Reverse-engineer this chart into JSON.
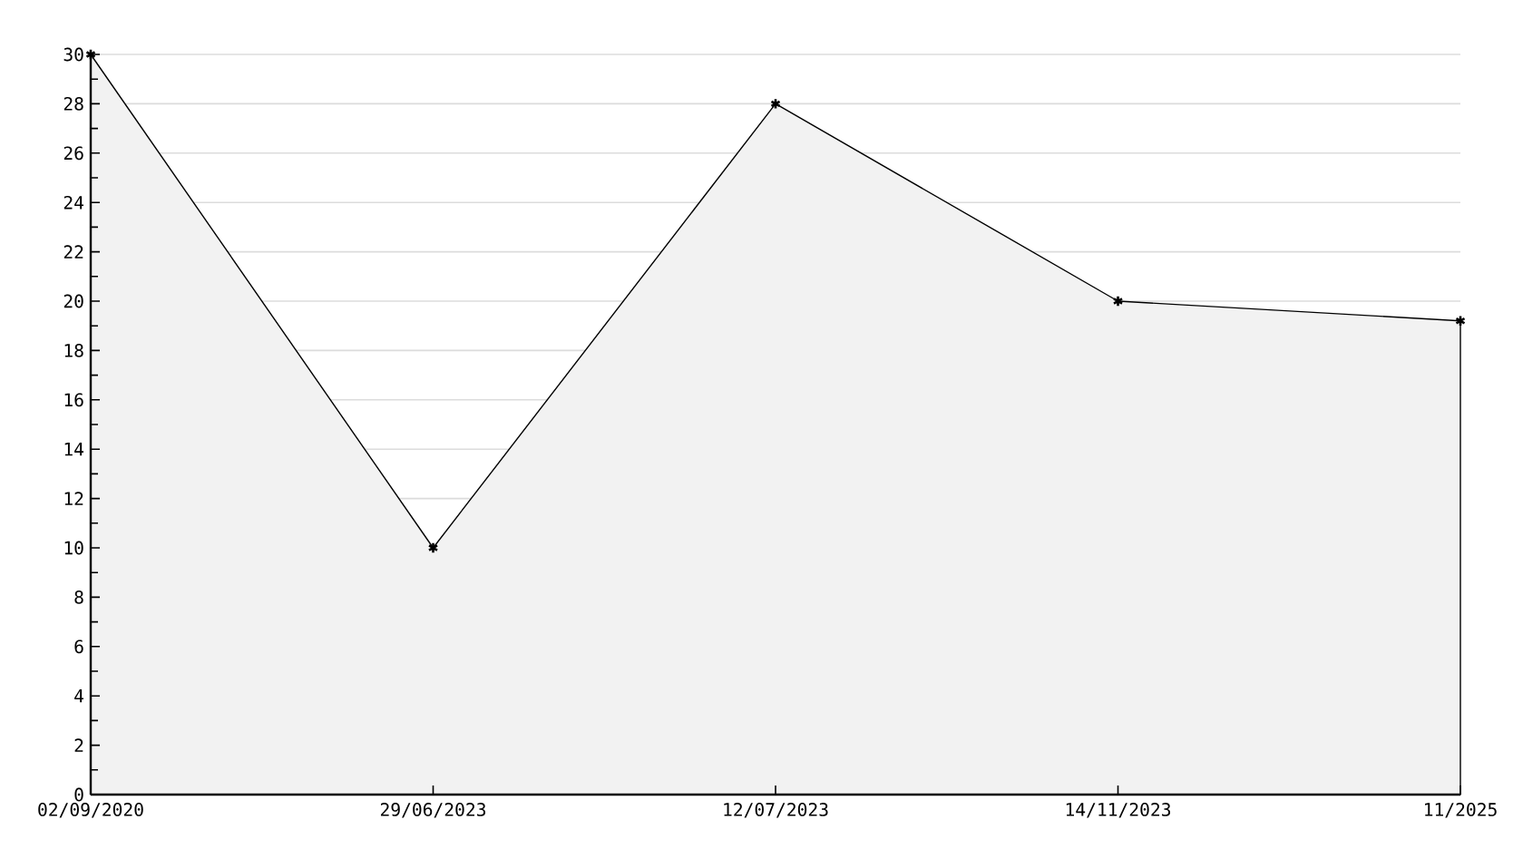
{
  "chart_data": {
    "type": "area",
    "categories": [
      "02/09/2020",
      "29/06/2023",
      "12/07/2023",
      "14/11/2023",
      "11/2025"
    ],
    "values": [
      30,
      10,
      28,
      20,
      19.2
    ],
    "color": "#f2f2f2",
    "marker": "cross",
    "grid": "y",
    "ylim": [
      0,
      30
    ],
    "yticks": [
      0,
      {
        "value": 1,
        "label": null
      },
      2,
      {
        "value": 3,
        "label": null
      },
      4,
      {
        "value": 5,
        "label": null
      },
      6,
      {
        "value": 7,
        "label": null
      },
      8,
      {
        "value": 9,
        "label": null
      },
      10,
      {
        "value": 11,
        "label": null
      },
      12,
      {
        "value": 13,
        "label": null
      },
      14,
      {
        "value": 15,
        "label": null
      },
      16,
      {
        "value": 17,
        "label": null
      },
      18,
      {
        "value": 19,
        "label": null
      },
      20,
      {
        "value": 21,
        "label": null
      },
      22,
      {
        "value": 23,
        "label": null
      },
      24,
      {
        "value": 25,
        "label": null
      },
      26,
      {
        "value": 27,
        "label": null
      },
      28,
      {
        "value": 29,
        "label": null
      },
      30
    ]
  }
}
